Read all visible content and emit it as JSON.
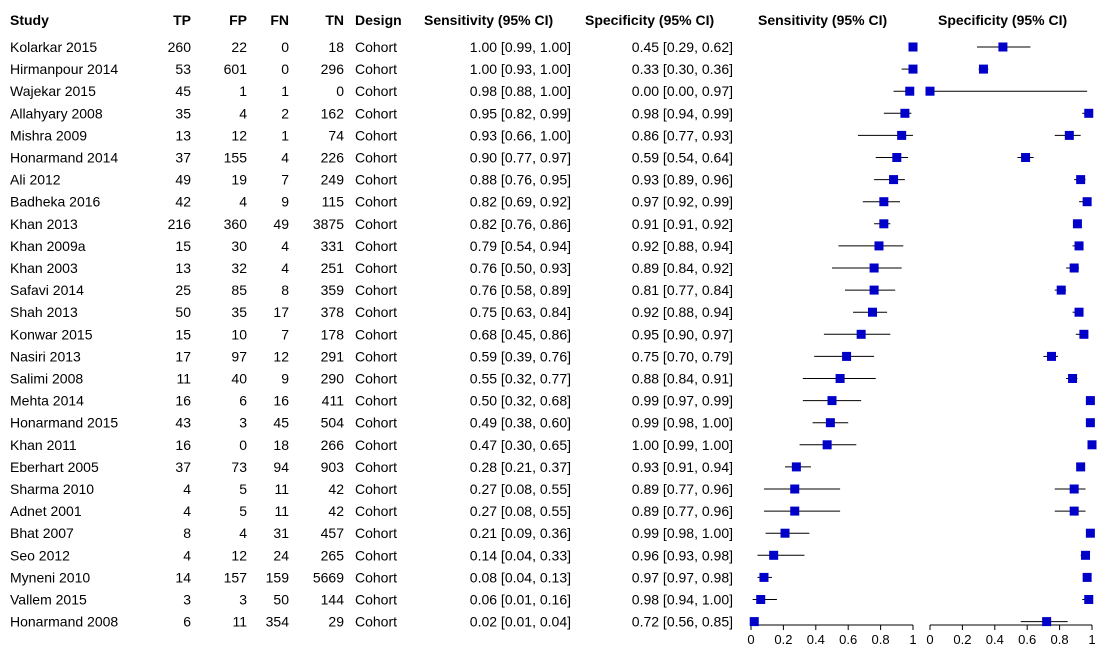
{
  "headers": {
    "study": "Study",
    "tp": "TP",
    "fp": "FP",
    "fn": "FN",
    "tn": "TN",
    "design": "Design",
    "sens_ci": "Sensitivity (95% CI)",
    "spec_ci": "Specificity (95% CI)",
    "sens_plot": "Sensitivity (95% CI)",
    "spec_plot": "Specificity (95% CI)"
  },
  "chart_data": {
    "type": "forest",
    "xlim": [
      0,
      1
    ],
    "ticks": [
      "0",
      "0.2",
      "0.4",
      "0.6",
      "0.8",
      "1"
    ],
    "point_color": "#0000c8",
    "studies": [
      {
        "study": "Kolarkar 2015",
        "tp": "260",
        "fp": "22",
        "fn": "0",
        "tn": "18",
        "design": "Cohort",
        "sens_text": "1.00 [0.99, 1.00]",
        "spec_text": "0.45 [0.29, 0.62]",
        "sens": [
          1.0,
          0.99,
          1.0
        ],
        "spec": [
          0.45,
          0.29,
          0.62
        ]
      },
      {
        "study": "Hirmanpour 2014",
        "tp": "53",
        "fp": "601",
        "fn": "0",
        "tn": "296",
        "design": "Cohort",
        "sens_text": "1.00 [0.93, 1.00]",
        "spec_text": "0.33 [0.30, 0.36]",
        "sens": [
          1.0,
          0.93,
          1.0
        ],
        "spec": [
          0.33,
          0.3,
          0.36
        ]
      },
      {
        "study": "Wajekar 2015",
        "tp": "45",
        "fp": "1",
        "fn": "1",
        "tn": "0",
        "design": "Cohort",
        "sens_text": "0.98 [0.88, 1.00]",
        "spec_text": "0.00 [0.00, 0.97]",
        "sens": [
          0.98,
          0.88,
          1.0
        ],
        "spec": [
          0.0,
          0.0,
          0.97
        ]
      },
      {
        "study": "Allahyary 2008",
        "tp": "35",
        "fp": "4",
        "fn": "2",
        "tn": "162",
        "design": "Cohort",
        "sens_text": "0.95 [0.82, 0.99]",
        "spec_text": "0.98 [0.94, 0.99]",
        "sens": [
          0.95,
          0.82,
          0.99
        ],
        "spec": [
          0.98,
          0.94,
          0.99
        ]
      },
      {
        "study": "Mishra 2009",
        "tp": "13",
        "fp": "12",
        "fn": "1",
        "tn": "74",
        "design": "Cohort",
        "sens_text": "0.93 [0.66, 1.00]",
        "spec_text": "0.86 [0.77, 0.93]",
        "sens": [
          0.93,
          0.66,
          1.0
        ],
        "spec": [
          0.86,
          0.77,
          0.93
        ]
      },
      {
        "study": "Honarmand 2014",
        "tp": "37",
        "fp": "155",
        "fn": "4",
        "tn": "226",
        "design": "Cohort",
        "sens_text": "0.90 [0.77, 0.97]",
        "spec_text": "0.59 [0.54, 0.64]",
        "sens": [
          0.9,
          0.77,
          0.97
        ],
        "spec": [
          0.59,
          0.54,
          0.64
        ]
      },
      {
        "study": "Ali 2012",
        "tp": "49",
        "fp": "19",
        "fn": "7",
        "tn": "249",
        "design": "Cohort",
        "sens_text": "0.88 [0.76, 0.95]",
        "spec_text": "0.93 [0.89, 0.96]",
        "sens": [
          0.88,
          0.76,
          0.95
        ],
        "spec": [
          0.93,
          0.89,
          0.96
        ]
      },
      {
        "study": "Badheka 2016",
        "tp": "42",
        "fp": "4",
        "fn": "9",
        "tn": "115",
        "design": "Cohort",
        "sens_text": "0.82 [0.69, 0.92]",
        "spec_text": "0.97 [0.92, 0.99]",
        "sens": [
          0.82,
          0.69,
          0.92
        ],
        "spec": [
          0.97,
          0.92,
          0.99
        ]
      },
      {
        "study": "Khan 2013",
        "tp": "216",
        "fp": "360",
        "fn": "49",
        "tn": "3875",
        "design": "Cohort",
        "sens_text": "0.82 [0.76, 0.86]",
        "spec_text": "0.91 [0.91, 0.92]",
        "sens": [
          0.82,
          0.76,
          0.86
        ],
        "spec": [
          0.91,
          0.91,
          0.92
        ]
      },
      {
        "study": "Khan 2009a",
        "tp": "15",
        "fp": "30",
        "fn": "4",
        "tn": "331",
        "design": "Cohort",
        "sens_text": "0.79 [0.54, 0.94]",
        "spec_text": "0.92 [0.88, 0.94]",
        "sens": [
          0.79,
          0.54,
          0.94
        ],
        "spec": [
          0.92,
          0.88,
          0.94
        ]
      },
      {
        "study": "Khan 2003",
        "tp": "13",
        "fp": "32",
        "fn": "4",
        "tn": "251",
        "design": "Cohort",
        "sens_text": "0.76 [0.50, 0.93]",
        "spec_text": "0.89 [0.84, 0.92]",
        "sens": [
          0.76,
          0.5,
          0.93
        ],
        "spec": [
          0.89,
          0.84,
          0.92
        ]
      },
      {
        "study": "Safavi 2014",
        "tp": "25",
        "fp": "85",
        "fn": "8",
        "tn": "359",
        "design": "Cohort",
        "sens_text": "0.76 [0.58, 0.89]",
        "spec_text": "0.81 [0.77, 0.84]",
        "sens": [
          0.76,
          0.58,
          0.89
        ],
        "spec": [
          0.81,
          0.77,
          0.84
        ]
      },
      {
        "study": "Shah 2013",
        "tp": "50",
        "fp": "35",
        "fn": "17",
        "tn": "378",
        "design": "Cohort",
        "sens_text": "0.75 [0.63, 0.84]",
        "spec_text": "0.92 [0.88, 0.94]",
        "sens": [
          0.75,
          0.63,
          0.84
        ],
        "spec": [
          0.92,
          0.88,
          0.94
        ]
      },
      {
        "study": "Konwar 2015",
        "tp": "15",
        "fp": "10",
        "fn": "7",
        "tn": "178",
        "design": "Cohort",
        "sens_text": "0.68 [0.45, 0.86]",
        "spec_text": "0.95 [0.90, 0.97]",
        "sens": [
          0.68,
          0.45,
          0.86
        ],
        "spec": [
          0.95,
          0.9,
          0.97
        ]
      },
      {
        "study": "Nasiri 2013",
        "tp": "17",
        "fp": "97",
        "fn": "12",
        "tn": "291",
        "design": "Cohort",
        "sens_text": "0.59 [0.39, 0.76]",
        "spec_text": "0.75 [0.70, 0.79]",
        "sens": [
          0.59,
          0.39,
          0.76
        ],
        "spec": [
          0.75,
          0.7,
          0.79
        ]
      },
      {
        "study": "Salimi 2008",
        "tp": "11",
        "fp": "40",
        "fn": "9",
        "tn": "290",
        "design": "Cohort",
        "sens_text": "0.55 [0.32, 0.77]",
        "spec_text": "0.88 [0.84, 0.91]",
        "sens": [
          0.55,
          0.32,
          0.77
        ],
        "spec": [
          0.88,
          0.84,
          0.91
        ]
      },
      {
        "study": "Mehta 2014",
        "tp": "16",
        "fp": "6",
        "fn": "16",
        "tn": "411",
        "design": "Cohort",
        "sens_text": "0.50 [0.32, 0.68]",
        "spec_text": "0.99 [0.97, 0.99]",
        "sens": [
          0.5,
          0.32,
          0.68
        ],
        "spec": [
          0.99,
          0.97,
          0.99
        ]
      },
      {
        "study": "Honarmand 2015",
        "tp": "43",
        "fp": "3",
        "fn": "45",
        "tn": "504",
        "design": "Cohort",
        "sens_text": "0.49 [0.38, 0.60]",
        "spec_text": "0.99 [0.98, 1.00]",
        "sens": [
          0.49,
          0.38,
          0.6
        ],
        "spec": [
          0.99,
          0.98,
          1.0
        ]
      },
      {
        "study": "Khan 2011",
        "tp": "16",
        "fp": "0",
        "fn": "18",
        "tn": "266",
        "design": "Cohort",
        "sens_text": "0.47 [0.30, 0.65]",
        "spec_text": "1.00 [0.99, 1.00]",
        "sens": [
          0.47,
          0.3,
          0.65
        ],
        "spec": [
          1.0,
          0.99,
          1.0
        ]
      },
      {
        "study": "Eberhart 2005",
        "tp": "37",
        "fp": "73",
        "fn": "94",
        "tn": "903",
        "design": "Cohort",
        "sens_text": "0.28 [0.21, 0.37]",
        "spec_text": "0.93 [0.91, 0.94]",
        "sens": [
          0.28,
          0.21,
          0.37
        ],
        "spec": [
          0.93,
          0.91,
          0.94
        ]
      },
      {
        "study": "Sharma 2010",
        "tp": "4",
        "fp": "5",
        "fn": "11",
        "tn": "42",
        "design": "Cohort",
        "sens_text": "0.27 [0.08, 0.55]",
        "spec_text": "0.89 [0.77, 0.96]",
        "sens": [
          0.27,
          0.08,
          0.55
        ],
        "spec": [
          0.89,
          0.77,
          0.96
        ]
      },
      {
        "study": "Adnet 2001",
        "tp": "4",
        "fp": "5",
        "fn": "11",
        "tn": "42",
        "design": "Cohort",
        "sens_text": "0.27 [0.08, 0.55]",
        "spec_text": "0.89 [0.77, 0.96]",
        "sens": [
          0.27,
          0.08,
          0.55
        ],
        "spec": [
          0.89,
          0.77,
          0.96
        ]
      },
      {
        "study": "Bhat 2007",
        "tp": "8",
        "fp": "4",
        "fn": "31",
        "tn": "457",
        "design": "Cohort",
        "sens_text": "0.21 [0.09, 0.36]",
        "spec_text": "0.99 [0.98, 1.00]",
        "sens": [
          0.21,
          0.09,
          0.36
        ],
        "spec": [
          0.99,
          0.98,
          1.0
        ]
      },
      {
        "study": "Seo 2012",
        "tp": "4",
        "fp": "12",
        "fn": "24",
        "tn": "265",
        "design": "Cohort",
        "sens_text": "0.14 [0.04, 0.33]",
        "spec_text": "0.96 [0.93, 0.98]",
        "sens": [
          0.14,
          0.04,
          0.33
        ],
        "spec": [
          0.96,
          0.93,
          0.98
        ]
      },
      {
        "study": "Myneni 2010",
        "tp": "14",
        "fp": "157",
        "fn": "159",
        "tn": "5669",
        "design": "Cohort",
        "sens_text": "0.08 [0.04, 0.13]",
        "spec_text": "0.97 [0.97, 0.98]",
        "sens": [
          0.08,
          0.04,
          0.13
        ],
        "spec": [
          0.97,
          0.97,
          0.98
        ]
      },
      {
        "study": "Vallem 2015",
        "tp": "3",
        "fp": "3",
        "fn": "50",
        "tn": "144",
        "design": "Cohort",
        "sens_text": "0.06 [0.01, 0.16]",
        "spec_text": "0.98 [0.94, 1.00]",
        "sens": [
          0.06,
          0.01,
          0.16
        ],
        "spec": [
          0.98,
          0.94,
          1.0
        ]
      },
      {
        "study": "Honarmand 2008",
        "tp": "6",
        "fp": "11",
        "fn": "354",
        "tn": "29",
        "design": "Cohort",
        "sens_text": "0.02 [0.01, 0.04]",
        "spec_text": "0.72 [0.56, 0.85]",
        "sens": [
          0.02,
          0.01,
          0.04
        ],
        "spec": [
          0.72,
          0.56,
          0.85
        ]
      }
    ]
  }
}
